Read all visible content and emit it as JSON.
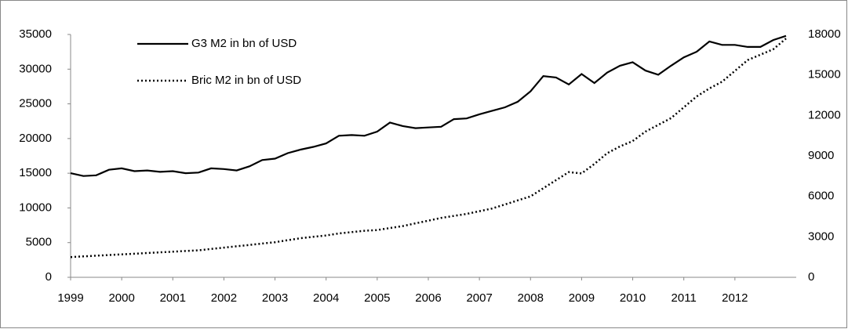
{
  "chart_data": {
    "type": "line",
    "x": [
      1999,
      1999.25,
      1999.5,
      1999.75,
      2000,
      2000.25,
      2000.5,
      2000.75,
      2001,
      2001.25,
      2001.5,
      2001.75,
      2002,
      2002.25,
      2002.5,
      2002.75,
      2003,
      2003.25,
      2003.5,
      2003.75,
      2004,
      2004.25,
      2004.5,
      2004.75,
      2005,
      2005.25,
      2005.5,
      2005.75,
      2006,
      2006.25,
      2006.5,
      2006.75,
      2007,
      2007.25,
      2007.5,
      2007.75,
      2008,
      2008.25,
      2008.5,
      2008.75,
      2009,
      2009.25,
      2009.5,
      2009.75,
      2010,
      2010.25,
      2010.5,
      2010.75,
      2011,
      2011.25,
      2011.5,
      2011.75,
      2012,
      2012.25,
      2012.5,
      2012.75,
      2013
    ],
    "series": [
      {
        "name": "G3 M2 in bn of USD",
        "color": "#000000",
        "line_style": "solid",
        "axis": "y",
        "values": [
          15000,
          14600,
          14700,
          15500,
          15700,
          15300,
          15400,
          15200,
          15300,
          15000,
          15100,
          15700,
          15600,
          15400,
          16000,
          16900,
          17100,
          17900,
          18400,
          18800,
          19300,
          20400,
          20500,
          20400,
          21000,
          22300,
          21800,
          21500,
          21600,
          21700,
          22800,
          22900,
          23500,
          24000,
          24500,
          25300,
          26800,
          29000,
          28800,
          27800,
          29300,
          28000,
          29500,
          30500,
          31000,
          29800,
          29200,
          30500,
          31700,
          32500,
          34000,
          33500,
          33500,
          33200,
          33200,
          34200,
          34800
        ]
      },
      {
        "name": "Bric M2 in bn of USD",
        "color": "#000000",
        "line_style": "dotted",
        "axis": "y2",
        "values": [
          1500,
          1550,
          1600,
          1650,
          1700,
          1750,
          1800,
          1850,
          1900,
          1950,
          2000,
          2100,
          2200,
          2300,
          2400,
          2500,
          2600,
          2750,
          2900,
          3000,
          3100,
          3250,
          3350,
          3450,
          3500,
          3650,
          3800,
          4000,
          4200,
          4400,
          4550,
          4700,
          4900,
          5100,
          5400,
          5700,
          6000,
          6600,
          7200,
          7800,
          7700,
          8400,
          9200,
          9700,
          10100,
          10800,
          11300,
          11800,
          12600,
          13400,
          14000,
          14500,
          15300,
          16100,
          16500,
          16900,
          17700
        ]
      }
    ],
    "xlim": [
      1999,
      2013.2
    ],
    "xticks": [
      1999,
      2000,
      2001,
      2002,
      2003,
      2004,
      2005,
      2006,
      2007,
      2008,
      2009,
      2010,
      2011,
      2012
    ],
    "ylim": [
      0,
      35000
    ],
    "yticks": [
      0,
      5000,
      10000,
      15000,
      20000,
      25000,
      30000,
      35000
    ],
    "y2lim": [
      0,
      18000
    ],
    "y2ticks": [
      0,
      3000,
      6000,
      9000,
      12000,
      15000,
      18000
    ],
    "grid": false,
    "legend": "top-left"
  }
}
